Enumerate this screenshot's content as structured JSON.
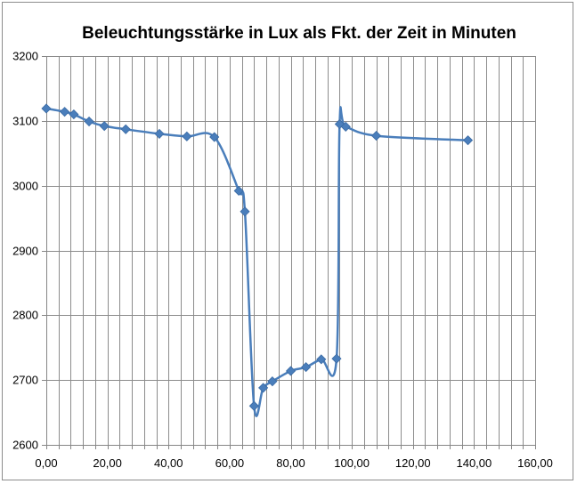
{
  "chart_data": {
    "type": "scatter",
    "title": "Beleuchtungsstärke in Lux als Fkt. der Zeit in Minuten",
    "xlabel": "",
    "ylabel": "",
    "xlim": [
      0,
      160
    ],
    "ylim": [
      2600,
      3200
    ],
    "x_ticks": [
      0,
      20,
      40,
      60,
      80,
      100,
      120,
      140,
      160
    ],
    "x_tick_labels": [
      "0,00",
      "20,00",
      "40,00",
      "60,00",
      "80,00",
      "100,00",
      "120,00",
      "140,00",
      "160,00"
    ],
    "y_ticks": [
      2600,
      2700,
      2800,
      2900,
      3000,
      3100,
      3200
    ],
    "y_tick_labels": [
      "2600",
      "2700",
      "2800",
      "2900",
      "3000",
      "3100",
      "3200"
    ],
    "x_minor_step": 4,
    "grid": true,
    "legend": "none",
    "line_style": "smooth",
    "marker": "diamond",
    "color": "#4a7ebb",
    "series": [
      {
        "x": [
          0,
          6,
          9,
          14,
          19,
          26,
          37,
          46,
          55,
          63,
          65,
          68,
          71,
          74,
          80,
          85,
          90,
          95,
          96,
          98,
          108,
          138
        ],
        "y": [
          3119,
          3114,
          3110,
          3099,
          3092,
          3087,
          3080,
          3076,
          3075,
          2992,
          2960,
          2660,
          2688,
          2698,
          2714,
          2720,
          2732,
          2733,
          3095,
          3091,
          3077,
          3070
        ]
      }
    ]
  }
}
